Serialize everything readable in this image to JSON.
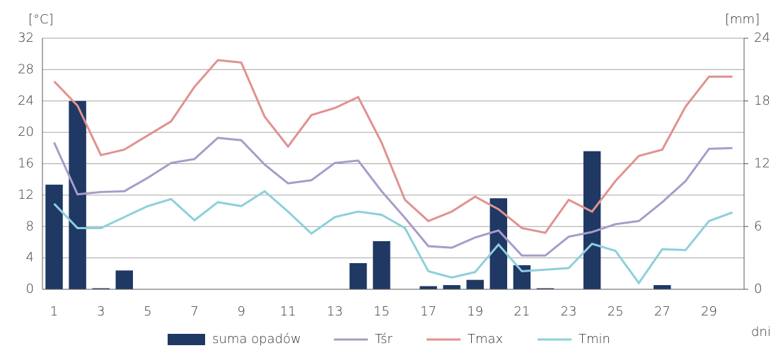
{
  "chart_data": {
    "type": "combo",
    "y_label": "[°C]",
    "y2_label": "[mm]",
    "x_label": "dni",
    "categories": [
      "1",
      null,
      "3",
      null,
      "5",
      null,
      "7",
      null,
      "9",
      null,
      "11",
      null,
      "13",
      null,
      "15",
      null,
      "17",
      null,
      "19",
      null,
      "21",
      null,
      "23",
      null,
      "25",
      null,
      "27",
      null,
      "29",
      null
    ],
    "ylim": [
      0,
      32
    ],
    "yticks": [
      0,
      4,
      8,
      12,
      16,
      20,
      24,
      28,
      32
    ],
    "y2lim": [
      0,
      24
    ],
    "y2ticks": [
      0,
      6,
      12,
      18,
      24
    ],
    "grid": true,
    "legend": "bottom",
    "series": [
      {
        "name": "suma opadów",
        "type": "bar",
        "axis": "y2",
        "color": "#1f3864",
        "values": [
          10.0,
          18.0,
          0.1,
          1.8,
          0,
          0,
          0,
          0,
          0,
          0,
          0,
          0,
          0,
          2.5,
          4.6,
          0,
          0.3,
          0.4,
          0.9,
          8.7,
          2.3,
          0.1,
          0,
          13.2,
          0,
          0,
          0.4,
          0,
          0,
          0
        ]
      },
      {
        "name": "Tśr",
        "type": "line",
        "color": "#a99bc8",
        "values": [
          18.7,
          12.1,
          12.4,
          12.5,
          14.2,
          16.1,
          16.6,
          19.3,
          19.0,
          15.9,
          13.5,
          13.9,
          16.1,
          16.4,
          12.5,
          9.1,
          5.5,
          5.3,
          6.6,
          7.5,
          4.3,
          4.3,
          6.7,
          7.3,
          8.3,
          8.7,
          11.1,
          13.8,
          17.9,
          18.0
        ]
      },
      {
        "name": "Tmax",
        "type": "line",
        "color": "#e0928f",
        "values": [
          26.5,
          23.4,
          17.1,
          17.8,
          19.6,
          21.4,
          25.8,
          29.2,
          28.9,
          22.0,
          18.2,
          22.2,
          23.1,
          24.5,
          18.7,
          11.4,
          8.7,
          9.9,
          11.8,
          10.2,
          7.8,
          7.2,
          11.4,
          9.9,
          13.8,
          17.0,
          17.8,
          23.3,
          27.1,
          27.1
        ]
      },
      {
        "name": "Tmin",
        "type": "line",
        "color": "#8ecfdc",
        "values": [
          10.9,
          7.8,
          7.8,
          9.2,
          10.6,
          11.5,
          8.8,
          11.1,
          10.6,
          12.5,
          9.9,
          7.1,
          9.2,
          9.9,
          9.5,
          7.8,
          2.3,
          1.5,
          2.2,
          5.7,
          2.3,
          2.5,
          2.7,
          5.8,
          4.9,
          0.8,
          5.1,
          5.0,
          8.7,
          9.8
        ]
      }
    ]
  }
}
